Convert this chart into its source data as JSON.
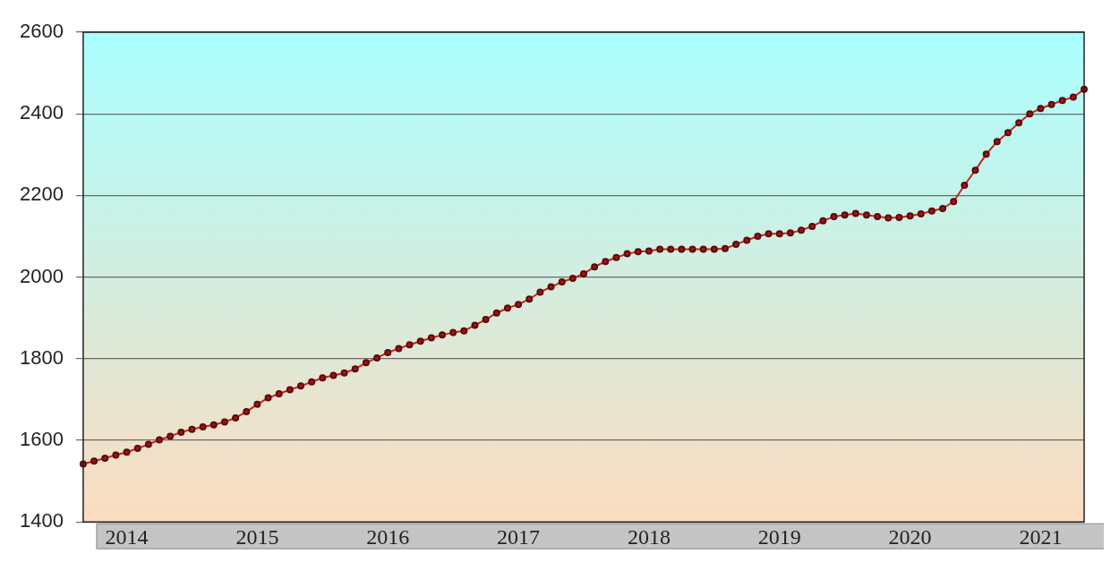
{
  "chart_data": {
    "type": "line",
    "categories": [
      null,
      null,
      null,
      null,
      "2014",
      null,
      null,
      null,
      null,
      null,
      null,
      null,
      null,
      null,
      null,
      null,
      "2015",
      null,
      null,
      null,
      null,
      null,
      null,
      null,
      null,
      null,
      null,
      null,
      "2016",
      null,
      null,
      null,
      null,
      null,
      null,
      null,
      null,
      null,
      null,
      null,
      "2017",
      null,
      null,
      null,
      null,
      null,
      null,
      null,
      null,
      null,
      null,
      null,
      "2018",
      null,
      null,
      null,
      null,
      null,
      null,
      null,
      null,
      null,
      null,
      null,
      "2019",
      null,
      null,
      null,
      null,
      null,
      null,
      null,
      null,
      null,
      null,
      null,
      "2020",
      null,
      null,
      null,
      null,
      null,
      null,
      null,
      null,
      null,
      null,
      null,
      "2021",
      null,
      null,
      null,
      null
    ],
    "series": [
      {
        "color": "#cc2222",
        "values": [
          1542,
          1549,
          1556,
          1564,
          1571,
          1580,
          1590,
          1601,
          1610,
          1620,
          1627,
          1633,
          1638,
          1645,
          1655,
          1670,
          1688,
          1704,
          1714,
          1724,
          1733,
          1743,
          1753,
          1759,
          1765,
          1775,
          1790,
          1802,
          1815,
          1825,
          1834,
          1843,
          1851,
          1858,
          1864,
          1868,
          1882,
          1896,
          1912,
          1924,
          1933,
          1946,
          1963,
          1976,
          1988,
          1997,
          2008,
          2025,
          2038,
          2048,
          2057,
          2062,
          2064,
          2068,
          2068,
          2068,
          2068,
          2068,
          2068,
          2070,
          2080,
          2090,
          2100,
          2106,
          2106,
          2108,
          2115,
          2124,
          2138,
          2148,
          2152,
          2156,
          2152,
          2148,
          2145,
          2146,
          2150,
          2155,
          2162,
          2168,
          2185,
          2225,
          2262,
          2301,
          2332,
          2354,
          2378,
          2400,
          2413,
          2423,
          2433,
          2441,
          2460
        ]
      }
    ],
    "ylim": [
      1400,
      2600
    ],
    "yticks": [
      1400,
      1600,
      1800,
      2000,
      2200,
      2400,
      2600
    ],
    "grid": "y",
    "legend": false,
    "marker": "circle",
    "line_style": "solid"
  }
}
